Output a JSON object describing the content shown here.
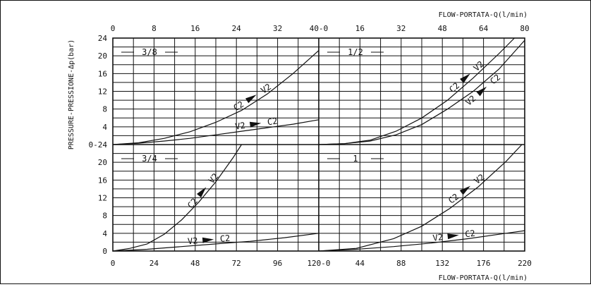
{
  "frame_label": "",
  "top_axis_title": "FLOW-PORTATA-Q(l/min)",
  "bottom_axis_title": "FLOW-PORTATA-Q(l/min)",
  "y_axis_title": "PRESSURE-PRESSIONE-Δp(bar)",
  "top_ticks": [
    "0",
    "8",
    "16",
    "24",
    "32",
    "40-0",
    "16",
    "32",
    "48",
    "64",
    "80"
  ],
  "bottom_ticks": [
    "0",
    "24",
    "48",
    "72",
    "96",
    "120-0",
    "44",
    "88",
    "132",
    "176",
    "220"
  ],
  "left_ticks_upper": [
    "24",
    "20",
    "16",
    "12",
    "8",
    "4"
  ],
  "left_ticks_mid": "0-24",
  "left_ticks_lower": [
    "20",
    "16",
    "12",
    "8",
    "4",
    "0"
  ],
  "colors": {
    "line": "#111111",
    "background": "#ffffff"
  },
  "chart_data": [
    {
      "type": "line",
      "panel_label": "3/8",
      "xlim": [
        0,
        40
      ],
      "ylim": [
        0,
        24
      ],
      "series": [
        {
          "name": "C2 → V2",
          "x": [
            0,
            5,
            10,
            15,
            20,
            25,
            30,
            35,
            40
          ],
          "y": [
            0,
            0.4,
            1.4,
            2.9,
            5.0,
            7.7,
            11.4,
            16.0,
            21.2
          ]
        },
        {
          "name": "V2 → C2",
          "x": [
            0,
            5,
            10,
            15,
            20,
            25,
            30,
            35,
            40
          ],
          "y": [
            0,
            0.3,
            0.8,
            1.4,
            2.2,
            3.0,
            3.8,
            4.6,
            5.6
          ]
        }
      ]
    },
    {
      "type": "line",
      "panel_label": "1/2",
      "xlim": [
        0,
        80
      ],
      "ylim": [
        0,
        24
      ],
      "series": [
        {
          "name": "C2 → V2",
          "x": [
            0,
            10,
            20,
            30,
            40,
            50,
            60,
            70,
            76
          ],
          "y": [
            0,
            0.2,
            1.0,
            3.0,
            6.0,
            10.0,
            15.0,
            20.5,
            24.0
          ]
        },
        {
          "name": "V2 → C2",
          "x": [
            0,
            10,
            20,
            30,
            40,
            50,
            60,
            70,
            80
          ],
          "y": [
            0,
            0.2,
            0.8,
            2.2,
            4.5,
            8.0,
            12.0,
            17.0,
            23.5
          ]
        }
      ]
    },
    {
      "type": "line",
      "panel_label": "3/4",
      "xlim": [
        0,
        120
      ],
      "ylim": [
        0,
        24
      ],
      "series": [
        {
          "name": "C2 → V2",
          "x": [
            0,
            10,
            20,
            30,
            40,
            50,
            60,
            70,
            75
          ],
          "y": [
            0,
            0.6,
            1.6,
            3.8,
            7.0,
            11.0,
            15.6,
            21.0,
            24.0
          ]
        },
        {
          "name": "V2 → C2",
          "x": [
            0,
            20,
            40,
            60,
            80,
            100,
            120
          ],
          "y": [
            0,
            0.4,
            1.0,
            1.6,
            2.2,
            3.0,
            4.0
          ]
        }
      ]
    },
    {
      "type": "line",
      "panel_label": "1",
      "xlim": [
        0,
        220
      ],
      "ylim": [
        0,
        24
      ],
      "series": [
        {
          "name": "C2 → V2",
          "x": [
            0,
            40,
            80,
            110,
            140,
            170,
            200,
            217
          ],
          "y": [
            0,
            0.6,
            2.8,
            5.6,
            9.6,
            14.4,
            20.2,
            24.0
          ]
        },
        {
          "name": "V2 → C2",
          "x": [
            0,
            40,
            80,
            120,
            160,
            200,
            220
          ],
          "y": [
            0,
            0.4,
            1.0,
            1.8,
            2.8,
            4.0,
            4.6
          ]
        }
      ]
    }
  ]
}
